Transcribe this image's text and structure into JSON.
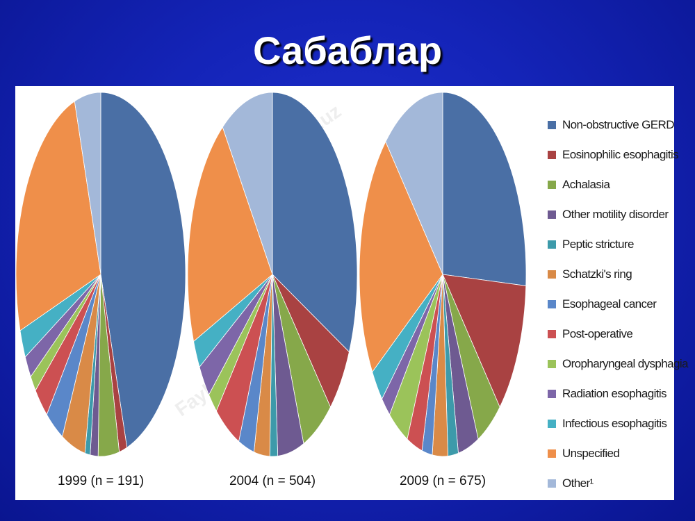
{
  "slide": {
    "title": "Сабаблар",
    "watermark": "FaylHub.uz"
  },
  "legend": {
    "position": "right",
    "items": [
      {
        "label": "Non-obstructive GERD",
        "color": "#4a6fa5"
      },
      {
        "label": "Eosinophilic esophagitis",
        "color": "#a94242"
      },
      {
        "label": "Achalasia",
        "color": "#86a84a"
      },
      {
        "label": "Other motility disorder",
        "color": "#6e5a91"
      },
      {
        "label": "Peptic stricture",
        "color": "#3d9aaa"
      },
      {
        "label": "Schatzki's ring",
        "color": "#d98a47"
      },
      {
        "label": "Esophageal cancer",
        "color": "#5a87c9"
      },
      {
        "label": "Post-operative",
        "color": "#cc5052"
      },
      {
        "label": "Oropharyngeal dysphagia",
        "color": "#9bc35a"
      },
      {
        "label": "Radiation esophagitis",
        "color": "#7d66a8"
      },
      {
        "label": "Infectious esophagitis",
        "color": "#45b0c4"
      },
      {
        "label": "Unspecified",
        "color": "#ef8f4a"
      },
      {
        "label": "Other¹",
        "color": "#a3b8d9"
      }
    ]
  },
  "chart_data": [
    {
      "type": "pie",
      "title": "1999 (n = 191)",
      "categories": [
        "Non-obstructive GERD",
        "Eosinophilic esophagitis",
        "Achalasia",
        "Other motility disorder",
        "Peptic stricture",
        "Schatzki's ring",
        "Esophageal cancer",
        "Post-operative",
        "Oropharyngeal dysphagia",
        "Radiation esophagitis",
        "Infectious esophagitis",
        "Unspecified",
        "Other¹"
      ],
      "values": [
        45,
        1.5,
        4,
        1.5,
        1,
        4.5,
        3.5,
        3,
        1.5,
        2,
        2.5,
        25,
        5
      ]
    },
    {
      "type": "pie",
      "title": "2004 (n = 504)",
      "categories": [
        "Non-obstructive GERD",
        "Eosinophilic esophagitis",
        "Achalasia",
        "Other motility disorder",
        "Peptic stricture",
        "Schatzki's ring",
        "Esophageal cancer",
        "Post-operative",
        "Oropharyngeal dysphagia",
        "Radiation esophagitis",
        "Infectious esophagitis",
        "Unspecified",
        "Other¹"
      ],
      "values": [
        32,
        6,
        6,
        5,
        1.5,
        3,
        3,
        5,
        2,
        3,
        2.5,
        21,
        10
      ]
    },
    {
      "type": "pie",
      "title": "2009 (n = 675)",
      "categories": [
        "Non-obstructive GERD",
        "Eosinophilic esophagitis",
        "Achalasia",
        "Other motility disorder",
        "Peptic stricture",
        "Schatzki's ring",
        "Esophageal cancer",
        "Post-operative",
        "Oropharyngeal dysphagia",
        "Radiation esophagitis",
        "Infectious esophagitis",
        "Unspecified",
        "Other¹"
      ],
      "values": [
        26,
        12,
        5,
        4,
        2,
        3,
        2,
        3,
        4,
        2,
        3,
        22,
        12
      ]
    }
  ]
}
